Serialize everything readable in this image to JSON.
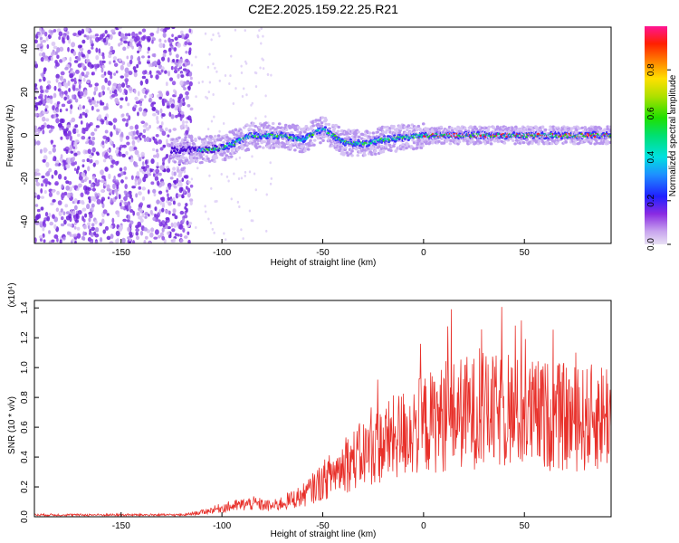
{
  "title": "C2E2.2025.159.22.25.R21",
  "chart_data": [
    {
      "type": "heatmap",
      "xlabel": "Height of straight line (km)",
      "ylabel": "Frequency (Hz)",
      "xlim": [
        -193,
        93
      ],
      "ylim": [
        -50,
        50
      ],
      "xticks": [
        "-150",
        "-100",
        "-50",
        "0",
        "50"
      ],
      "yticks": [
        "-40",
        "-20",
        "0",
        "20",
        "40"
      ],
      "colorbar": {
        "label": "Normalized spectral amplitude",
        "range": [
          0,
          1
        ],
        "ticks": [
          "0.0",
          "0.2",
          "0.4",
          "0.6",
          "0.8"
        ]
      },
      "signal_track": [
        {
          "x": -115,
          "y": -7
        },
        {
          "x": -100,
          "y": -6
        },
        {
          "x": -85,
          "y": 0
        },
        {
          "x": -70,
          "y": 0
        },
        {
          "x": -60,
          "y": -2
        },
        {
          "x": -50,
          "y": 3
        },
        {
          "x": -40,
          "y": -3
        },
        {
          "x": -30,
          "y": -4
        },
        {
          "x": -20,
          "y": -2
        },
        {
          "x": -10,
          "y": -1
        },
        {
          "x": 0,
          "y": 0
        },
        {
          "x": 50,
          "y": 0
        },
        {
          "x": 93,
          "y": 0
        }
      ],
      "noise_region": {
        "x_from": -193,
        "x_to": -115
      }
    },
    {
      "type": "line",
      "xlabel": "Height of straight line (km)",
      "ylabel": "SNR (10 * v/v)",
      "scale_note": "(x10⁴)",
      "xlim": [
        -193,
        93
      ],
      "ylim": [
        0,
        1.45
      ],
      "xticks": [
        "-150",
        "-100",
        "-50",
        "0",
        "50"
      ],
      "yticks": [
        "0.0",
        "0.2",
        "0.4",
        "0.6",
        "0.8",
        "1.0",
        "1.2",
        "1.4"
      ],
      "color": "#e8302a",
      "envelope": [
        {
          "x": -193,
          "y": 0.01
        },
        {
          "x": -120,
          "y": 0.01
        },
        {
          "x": -110,
          "y": 0.03
        },
        {
          "x": -100,
          "y": 0.06
        },
        {
          "x": -85,
          "y": 0.09
        },
        {
          "x": -75,
          "y": 0.07
        },
        {
          "x": -60,
          "y": 0.14
        },
        {
          "x": -50,
          "y": 0.24
        },
        {
          "x": -40,
          "y": 0.34
        },
        {
          "x": -30,
          "y": 0.42
        },
        {
          "x": -20,
          "y": 0.49
        },
        {
          "x": -10,
          "y": 0.56
        },
        {
          "x": 0,
          "y": 0.62
        },
        {
          "x": 10,
          "y": 0.66
        },
        {
          "x": 20,
          "y": 0.7
        },
        {
          "x": 40,
          "y": 0.7
        },
        {
          "x": 60,
          "y": 0.68
        },
        {
          "x": 80,
          "y": 0.65
        },
        {
          "x": 93,
          "y": 0.7
        }
      ]
    }
  ]
}
